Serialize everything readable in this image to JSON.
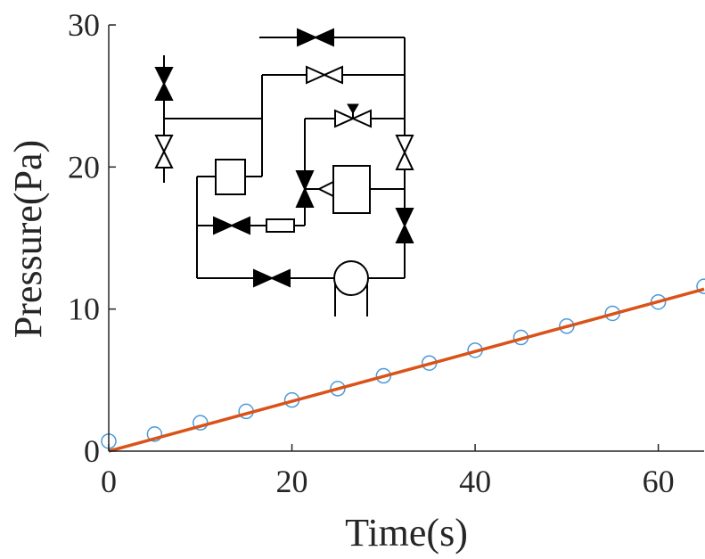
{
  "chart_data": {
    "type": "scatter",
    "xlabel": "Time(s)",
    "ylabel": "Pressure(Pa)",
    "xlim": [
      0,
      65
    ],
    "ylim": [
      0,
      30
    ],
    "xticks": [
      0,
      20,
      40,
      60
    ],
    "yticks": [
      0,
      10,
      20,
      30
    ],
    "grid": false,
    "series": [
      {
        "kind": "markers",
        "marker": "circle",
        "color": "#4A9AD8",
        "x": [
          0,
          5,
          10,
          15,
          20,
          25,
          30,
          35,
          40,
          45,
          50,
          55,
          60,
          65
        ],
        "y": [
          0.7,
          1.2,
          2.0,
          2.8,
          3.6,
          4.4,
          5.3,
          6.2,
          7.1,
          8.0,
          8.8,
          9.7,
          10.5,
          11.6
        ]
      },
      {
        "kind": "line",
        "color": "#D95319",
        "x": [
          0,
          65
        ],
        "y": [
          0,
          11.4
        ]
      }
    ],
    "inset": "valve-network-schematic-icon"
  }
}
